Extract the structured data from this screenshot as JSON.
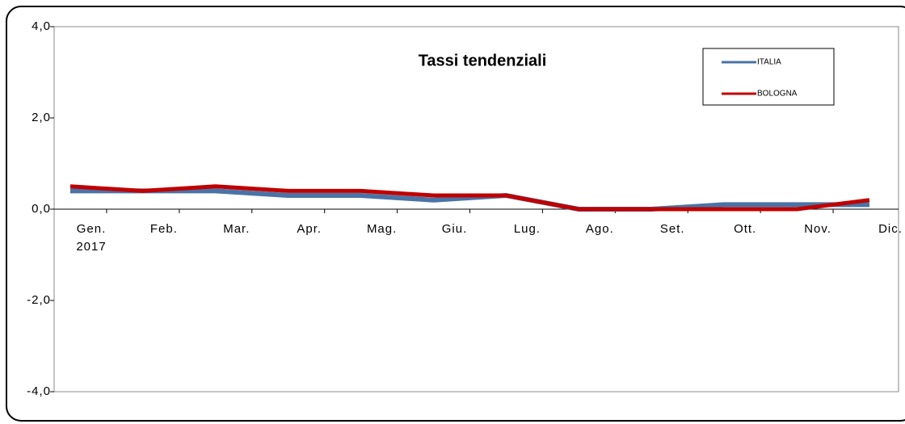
{
  "chart_data": {
    "type": "line",
    "title": "Tassi tendenziali",
    "categories": [
      "Gen.\n2017",
      "Feb.",
      "Mar.",
      "Apr.",
      "Mag.",
      "Giu.",
      "Lug.",
      "Ago.",
      "Set.",
      "Ott.",
      "Nov.",
      "Dic."
    ],
    "series": [
      {
        "name": "ITALIA",
        "color": "#4a73a6",
        "values": [
          0.4,
          0.4,
          0.4,
          0.3,
          0.3,
          0.2,
          0.3,
          0.0,
          0.0,
          0.1,
          0.1,
          0.1
        ]
      },
      {
        "name": "BOLOGNA",
        "color": "#c00000",
        "values": [
          0.5,
          0.4,
          0.5,
          0.4,
          0.4,
          0.3,
          0.3,
          0.0,
          0.0,
          0.0,
          0.0,
          0.2
        ]
      }
    ],
    "ylim": [
      -4,
      4
    ],
    "yticks": [
      {
        "value": -4,
        "label": "-4,0"
      },
      {
        "value": -2,
        "label": "-2,0"
      },
      {
        "value": 0,
        "label": "0,0"
      },
      {
        "value": 2,
        "label": "2,0"
      },
      {
        "value": 4,
        "label": "4,0"
      }
    ],
    "grid": false,
    "legend": "upper right"
  }
}
